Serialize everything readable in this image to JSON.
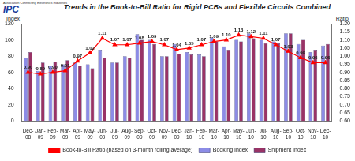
{
  "chart_data": {
    "type": "bar",
    "title": "Trends in the Book-to-Bill Ratio for Rigid PCBs and Flexible Circuits Combined",
    "annotations": [
      "IPC",
      "Association Connecting Electronics Industries"
    ],
    "y_label": "Index",
    "y2_label": "Ratio",
    "categories": [
      "Dec-08",
      "Jan-09",
      "Feb-09",
      "Mar-09",
      "Apr-09",
      "May-09",
      "Jun-09",
      "Jul-09",
      "Aug-09",
      "Sep-09",
      "Oct-09",
      "Nov-09",
      "Dec-09",
      "Jan-10",
      "Feb-10",
      "Mar-10",
      "Apr-10",
      "May-10",
      "Jun-10",
      "Jul-10",
      "Aug-10",
      "Sep-10",
      "Oct-10",
      "Nov-10",
      "Dec-10"
    ],
    "series": [
      {
        "name": "Booking Index",
        "type": "bar",
        "color": "#8c8ce6",
        "values": [
          78,
          62,
          68,
          70,
          72,
          70,
          88,
          72,
          80,
          107,
          100,
          80,
          95,
          85,
          82,
          103,
          92,
          100,
          108,
          100,
          98,
          108,
          95,
          85,
          93
        ]
      },
      {
        "name": "Shipment Index",
        "type": "bar",
        "color": "#993366",
        "values": [
          85,
          72,
          73,
          75,
          68,
          65,
          78,
          72,
          78,
          100,
          95,
          80,
          83,
          82,
          80,
          98,
          88,
          98,
          102,
          96,
          96,
          108,
          100,
          88,
          95
        ]
      },
      {
        "name": "Book-to-Bill Ratio (based on 3-month rolling average)",
        "type": "line",
        "color": "#ff0000",
        "marker": "triangle",
        "axis": "y2",
        "data_labels": true,
        "values": [
          0.9,
          0.89,
          0.9,
          0.91,
          0.97,
          1.02,
          1.11,
          1.07,
          1.07,
          1.08,
          1.09,
          1.07,
          1.04,
          1.05,
          1.07,
          1.09,
          1.1,
          1.13,
          1.12,
          1.11,
          1.07,
          1.03,
          0.99,
          0.96,
          0.96
        ],
        "value_labels": [
          "0.90",
          "0.89",
          "0.90",
          "0.91",
          "0.97",
          "1.02",
          "1.11",
          "1.07",
          "1.07",
          "1.08",
          "1.09",
          "1.07",
          "1.04",
          "1.05",
          "1.07",
          "1.09",
          "1.10",
          "1.13",
          "1.12",
          "1.11",
          "1.07",
          "1.03",
          "0.99",
          "0.96",
          "0.96"
        ]
      }
    ],
    "ylim": [
      0,
      120
    ],
    "yticks": [
      0,
      20,
      40,
      60,
      80,
      100,
      120
    ],
    "y2lim": [
      0.6,
      1.2
    ],
    "y2ticks": [
      {
        "value": 0.6,
        "label": "0.60"
      },
      {
        "value": 0.65,
        "label": "0.65"
      },
      {
        "value": 0.7,
        "label": "0.70"
      },
      {
        "value": 0.75,
        "label": "0.75"
      },
      {
        "value": 0.8,
        "label": "0.80"
      },
      {
        "value": 0.85,
        "label": "0.85"
      },
      {
        "value": 0.9,
        "label": "0.90"
      },
      {
        "value": 0.95,
        "label": "0.95"
      },
      {
        "value": 1.0,
        "label": "1.00"
      },
      {
        "value": 1.05,
        "label": "1.05"
      },
      {
        "value": 1.1,
        "label": "1.10"
      },
      {
        "value": 1.15,
        "label": "1.15"
      },
      {
        "value": 1.2,
        "label": "1.20"
      }
    ],
    "grid": false,
    "legend": "bottom"
  }
}
